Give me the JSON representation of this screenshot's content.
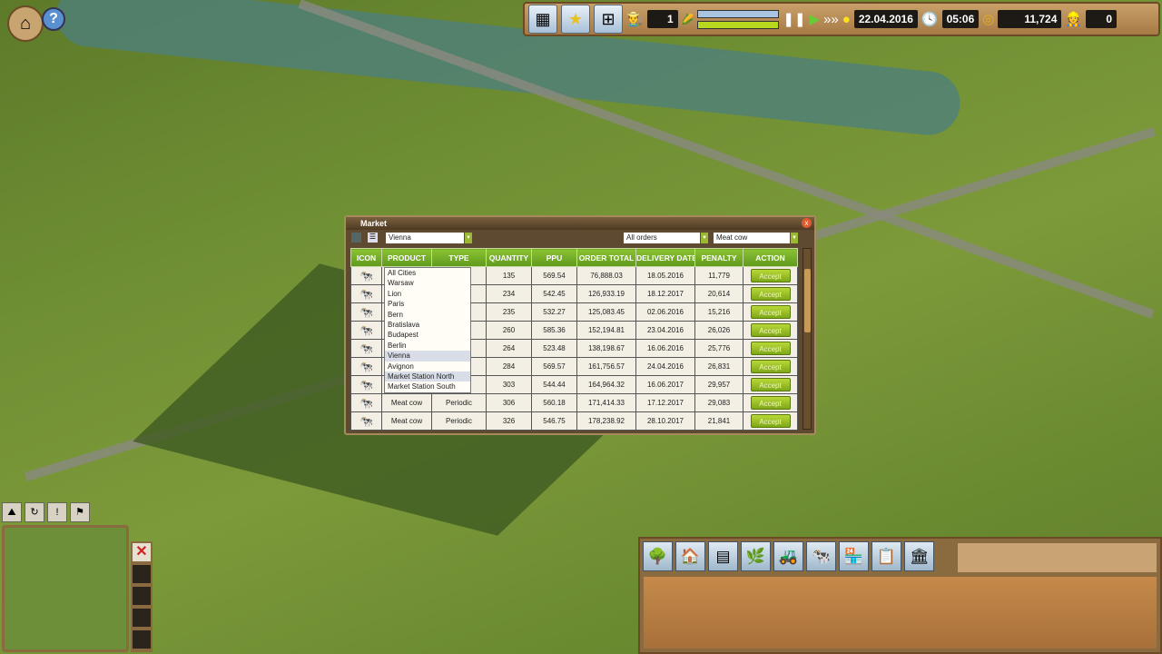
{
  "hud": {
    "home_icon": "house-icon",
    "help_label": "?",
    "buttons": [
      "storage-icon",
      "star-icon",
      "hierarchy-icon"
    ],
    "workers": "1",
    "date": "22.04.2016",
    "time": "05:06",
    "money": "11,724",
    "notifications": "0",
    "bar_colors": {
      "crop": "#a8c4e0",
      "animal": "#b8d820"
    },
    "speed_controls": [
      "pause-icon",
      "play-icon",
      "fast-forward-icon"
    ]
  },
  "market": {
    "title": "Market",
    "close": "x",
    "city_filter": "Vienna",
    "order_filter": "All orders",
    "product_filter": "Meat cow",
    "columns": [
      "ICON",
      "PRODUCT",
      "TYPE",
      "QUANTITY",
      "PPU",
      "ORDER TOTAL",
      "DELIVERY DATE",
      "PENALTY",
      "ACTION"
    ],
    "rows": [
      {
        "product": "",
        "type": "",
        "quantity": "135",
        "ppu": "569.54",
        "total": "76,888.03",
        "date": "18.05.2016",
        "penalty": "11,779",
        "action": "Accept"
      },
      {
        "product": "",
        "type": "",
        "quantity": "234",
        "ppu": "542.45",
        "total": "126,933.19",
        "date": "18.12.2017",
        "penalty": "20,614",
        "action": "Accept"
      },
      {
        "product": "",
        "type": "",
        "quantity": "235",
        "ppu": "532.27",
        "total": "125,083.45",
        "date": "02.06.2016",
        "penalty": "15,216",
        "action": "Accept"
      },
      {
        "product": "",
        "type": "",
        "quantity": "260",
        "ppu": "585.36",
        "total": "152,194.81",
        "date": "23.04.2016",
        "penalty": "26,026",
        "action": "Accept"
      },
      {
        "product": "",
        "type": "",
        "quantity": "264",
        "ppu": "523.48",
        "total": "138,198.67",
        "date": "16.06.2016",
        "penalty": "25,776",
        "action": "Accept"
      },
      {
        "product": "",
        "type": "",
        "quantity": "284",
        "ppu": "569.57",
        "total": "161,756.57",
        "date": "24.04.2016",
        "penalty": "26,831",
        "action": "Accept"
      },
      {
        "product": "",
        "type": "",
        "quantity": "303",
        "ppu": "544.44",
        "total": "164,964.32",
        "date": "16.06.2017",
        "penalty": "29,957",
        "action": "Accept"
      },
      {
        "product": "Meat cow",
        "type": "Periodic",
        "quantity": "306",
        "ppu": "560.18",
        "total": "171,414.33",
        "date": "17.12.2017",
        "penalty": "29,083",
        "action": "Accept"
      },
      {
        "product": "Meat cow",
        "type": "Periodic",
        "quantity": "326",
        "ppu": "546.75",
        "total": "178,238.92",
        "date": "28.10.2017",
        "penalty": "21,841",
        "action": "Accept"
      }
    ],
    "city_options": [
      "All Cities",
      "Warsaw",
      "Lion",
      "Paris",
      "Bern",
      "Bratislava",
      "Budapest",
      "Berlin",
      "Vienna",
      "Avignon",
      "Market Station North",
      "Market Station South"
    ],
    "selected_option": "Vienna",
    "hovered_option": "Market Station North"
  },
  "minimap": {
    "buttons": [
      "map-icon",
      "cycle-icon",
      "alert-icon",
      "marker-icon"
    ],
    "close": "✕"
  },
  "build_menu": {
    "tabs": [
      "fields-icon",
      "barn-icon",
      "crop-field-icon",
      "meadow-icon",
      "tractor-icon",
      "cattle-icon",
      "market-stall-icon",
      "contract-icon",
      "bank-icon"
    ]
  }
}
